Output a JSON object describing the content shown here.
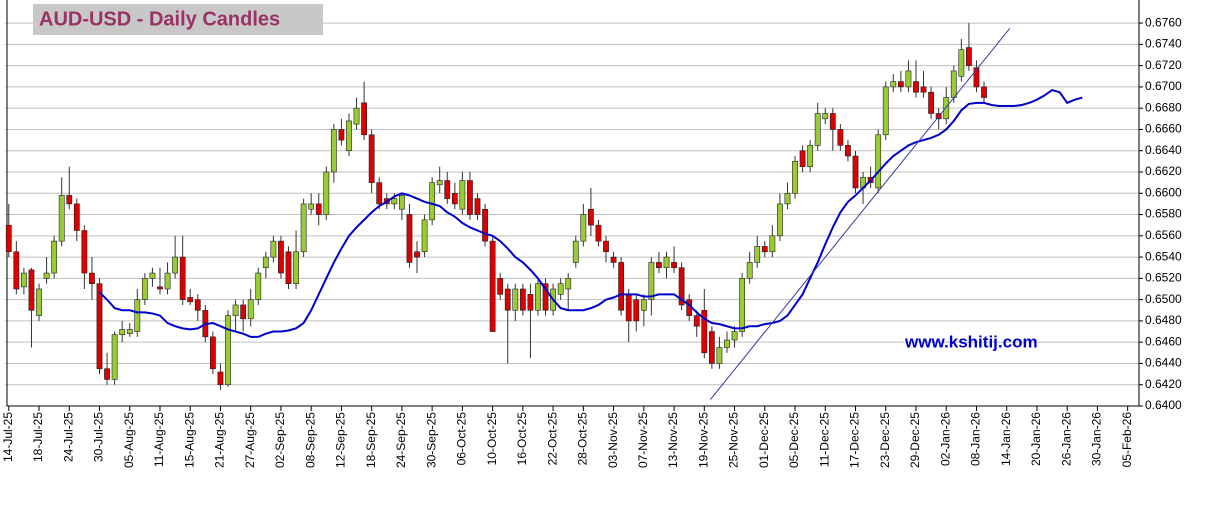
{
  "chart_data": {
    "type": "candlestick",
    "title": "AUD-USD - Daily Candles",
    "watermark": "www.kshitij.com",
    "categories": [
      "14-Jul-25",
      null,
      null,
      null,
      "18-Jul-25",
      null,
      null,
      null,
      "24-Jul-25",
      null,
      null,
      null,
      "30-Jul-25",
      null,
      null,
      null,
      "05-Aug-25",
      null,
      null,
      null,
      "11-Aug-25",
      null,
      null,
      null,
      "15-Aug-25",
      null,
      null,
      null,
      "21-Aug-25",
      null,
      null,
      null,
      "27-Aug-25",
      null,
      null,
      null,
      "02-Sep-25",
      null,
      null,
      null,
      "08-Sep-25",
      null,
      null,
      null,
      "12-Sep-25",
      null,
      null,
      null,
      "18-Sep-25",
      null,
      null,
      null,
      "24-Sep-25",
      null,
      null,
      null,
      "30-Sep-25",
      null,
      null,
      null,
      "06-Oct-25",
      null,
      null,
      null,
      "10-Oct-25",
      null,
      null,
      null,
      "16-Oct-25",
      null,
      null,
      null,
      "22-Oct-25",
      null,
      null,
      null,
      "28-Oct-25",
      null,
      null,
      null,
      "03-Nov-25",
      null,
      null,
      null,
      "07-Nov-25",
      null,
      null,
      null,
      "13-Nov-25",
      null,
      null,
      null,
      "19-Nov-25",
      null,
      null,
      null,
      "25-Nov-25",
      null,
      null,
      null,
      "01-Dec-25",
      null,
      null,
      null,
      "05-Dec-25",
      null,
      null,
      null,
      "11-Dec-25",
      null,
      null,
      null,
      "17-Dec-25",
      null,
      null,
      null,
      "23-Dec-25",
      null,
      null,
      null,
      "29-Dec-25",
      null,
      null,
      null,
      "02-Jan-26",
      null,
      null,
      null,
      "08-Jan-26",
      null,
      null,
      null,
      "14-Jan-26",
      null,
      null,
      null,
      "20-Jan-26",
      null,
      null,
      null,
      "26-Jan-26",
      null,
      null,
      null,
      "30-Jan-26",
      null,
      null,
      null,
      "05-Feb-26",
      null
    ],
    "candles": {
      "up_color": "#99cc33",
      "down_color": "#dd0000",
      "open": [
        0.657,
        0.6545,
        0.6512,
        0.6528,
        0.6485,
        0.652,
        0.6525,
        0.6555,
        0.6598,
        0.659,
        0.6565,
        0.6525,
        0.6515,
        0.6435,
        0.6425,
        0.6467,
        0.6468,
        0.647,
        0.65,
        0.652,
        0.6512,
        0.651,
        0.6525,
        0.654,
        0.6502,
        0.65,
        0.649,
        0.6465,
        0.6432,
        0.642,
        0.6485,
        0.6495,
        0.6482,
        0.65,
        0.653,
        0.654,
        0.6555,
        0.6545,
        0.6515,
        0.6545,
        0.6585,
        0.659,
        0.658,
        0.662,
        0.666,
        0.664,
        0.6665,
        0.6685,
        0.6655,
        0.661,
        0.6595,
        0.659,
        0.6585,
        0.658,
        0.6545,
        0.6545,
        0.6575,
        0.6608,
        0.6612,
        0.66,
        0.6585,
        0.6612,
        0.6595,
        0.6585,
        0.6555,
        0.652,
        0.651,
        0.649,
        0.651,
        0.6505,
        0.649,
        0.6515,
        0.649,
        0.6505,
        0.651,
        0.6535,
        0.6555,
        0.6585,
        0.657,
        0.6555,
        0.654,
        0.6535,
        0.6505,
        0.65,
        0.649,
        0.65,
        0.6535,
        0.653,
        0.6535,
        0.653,
        0.65,
        0.6485,
        0.649,
        0.647,
        0.644,
        0.6455,
        0.6462,
        0.647,
        0.652,
        0.6535,
        0.655,
        0.6545,
        0.656,
        0.659,
        0.66,
        0.664,
        0.6625,
        0.6645,
        0.667,
        0.6675,
        0.666,
        0.6645,
        0.6635,
        0.6605,
        0.6615,
        0.6605,
        0.6655,
        0.67,
        0.6705,
        0.67,
        0.6705,
        0.67,
        0.6695,
        0.6675,
        0.667,
        0.669,
        0.671,
        0.6737,
        0.6718,
        0.67,
        null,
        null,
        null,
        null,
        null,
        null,
        null,
        null,
        null,
        null,
        null,
        null,
        null,
        null,
        null,
        null,
        null,
        null,
        null,
        null
      ],
      "high": [
        0.659,
        0.6555,
        0.653,
        0.653,
        0.6515,
        0.654,
        0.656,
        0.6615,
        0.6625,
        0.6595,
        0.657,
        0.654,
        0.652,
        0.645,
        0.647,
        0.648,
        0.6478,
        0.651,
        0.6525,
        0.653,
        0.653,
        0.6535,
        0.656,
        0.656,
        0.651,
        0.6505,
        0.6495,
        0.647,
        0.644,
        0.649,
        0.65,
        0.65,
        0.651,
        0.653,
        0.6545,
        0.656,
        0.656,
        0.655,
        0.6565,
        0.6595,
        0.66,
        0.66,
        0.6625,
        0.6665,
        0.667,
        0.6675,
        0.669,
        0.6705,
        0.666,
        0.6615,
        0.66,
        0.66,
        0.66,
        0.659,
        0.6555,
        0.658,
        0.6615,
        0.6625,
        0.662,
        0.661,
        0.662,
        0.662,
        0.66,
        0.659,
        0.656,
        0.6525,
        0.6515,
        0.6515,
        0.6515,
        0.6515,
        0.652,
        0.652,
        0.6515,
        0.652,
        0.6525,
        0.656,
        0.659,
        0.6605,
        0.6575,
        0.656,
        0.6545,
        0.654,
        0.651,
        0.6505,
        0.6505,
        0.654,
        0.6545,
        0.6545,
        0.655,
        0.6535,
        0.6505,
        0.649,
        0.651,
        0.6475,
        0.6465,
        0.647,
        0.6475,
        0.6525,
        0.6545,
        0.656,
        0.6555,
        0.657,
        0.66,
        0.661,
        0.6635,
        0.6645,
        0.665,
        0.6685,
        0.668,
        0.668,
        0.6665,
        0.665,
        0.664,
        0.662,
        0.6625,
        0.666,
        0.6705,
        0.6712,
        0.6715,
        0.6725,
        0.6725,
        0.6715,
        0.67,
        0.668,
        0.67,
        0.672,
        0.6745,
        0.676,
        0.6725,
        0.6705,
        null,
        null,
        null,
        null,
        null,
        null,
        null,
        null,
        null,
        null,
        null,
        null,
        null,
        null,
        null,
        null,
        null,
        null,
        null,
        null
      ],
      "low": [
        0.654,
        0.6505,
        0.6505,
        0.6455,
        0.648,
        0.6515,
        0.652,
        0.655,
        0.6585,
        0.6555,
        0.651,
        0.65,
        0.643,
        0.642,
        0.642,
        0.646,
        0.6465,
        0.6465,
        0.6495,
        0.6512,
        0.6505,
        0.6505,
        0.652,
        0.6495,
        0.6495,
        0.648,
        0.646,
        0.643,
        0.6415,
        0.6418,
        0.647,
        0.647,
        0.6475,
        0.6495,
        0.652,
        0.6535,
        0.652,
        0.651,
        0.651,
        0.654,
        0.658,
        0.657,
        0.6575,
        0.661,
        0.6645,
        0.6635,
        0.666,
        0.665,
        0.66,
        0.6585,
        0.6585,
        0.6585,
        0.6575,
        0.653,
        0.6525,
        0.654,
        0.657,
        0.66,
        0.659,
        0.6585,
        0.658,
        0.6575,
        0.6575,
        0.655,
        0.647,
        0.65,
        0.644,
        0.648,
        0.6485,
        0.6445,
        0.6485,
        0.6485,
        0.6485,
        0.65,
        0.649,
        0.653,
        0.655,
        0.656,
        0.655,
        0.6535,
        0.653,
        0.6485,
        0.646,
        0.647,
        0.6475,
        0.6485,
        0.6525,
        0.652,
        0.6525,
        0.649,
        0.648,
        0.6465,
        0.6445,
        0.6435,
        0.6435,
        0.645,
        0.6455,
        0.6465,
        0.6515,
        0.653,
        0.654,
        0.654,
        0.6555,
        0.6585,
        0.6595,
        0.662,
        0.662,
        0.664,
        0.6665,
        0.664,
        0.664,
        0.663,
        0.66,
        0.659,
        0.6605,
        0.66,
        0.665,
        0.6695,
        0.6695,
        0.6695,
        0.669,
        0.669,
        0.667,
        0.666,
        0.6665,
        0.6685,
        0.6705,
        0.6715,
        0.6695,
        0.6685,
        null,
        null,
        null,
        null,
        null,
        null,
        null,
        null,
        null,
        null,
        null,
        null,
        null,
        null,
        null,
        null,
        null,
        null,
        null,
        null
      ],
      "close": [
        0.6545,
        0.651,
        0.6525,
        0.649,
        0.651,
        0.6525,
        0.6555,
        0.6598,
        0.659,
        0.6565,
        0.6525,
        0.6515,
        0.6435,
        0.6425,
        0.6467,
        0.6472,
        0.6472,
        0.65,
        0.652,
        0.6525,
        0.651,
        0.6525,
        0.654,
        0.65,
        0.6498,
        0.649,
        0.6465,
        0.6435,
        0.642,
        0.6485,
        0.6495,
        0.6482,
        0.65,
        0.6525,
        0.654,
        0.6555,
        0.6525,
        0.6515,
        0.6545,
        0.659,
        0.659,
        0.658,
        0.662,
        0.666,
        0.665,
        0.6668,
        0.668,
        0.6655,
        0.661,
        0.659,
        0.659,
        0.6595,
        0.6598,
        0.6535,
        0.654,
        0.6575,
        0.661,
        0.6612,
        0.6595,
        0.659,
        0.6612,
        0.658,
        0.658,
        0.6555,
        0.647,
        0.6505,
        0.649,
        0.651,
        0.649,
        0.649,
        0.6515,
        0.649,
        0.651,
        0.6515,
        0.652,
        0.6555,
        0.658,
        0.657,
        0.6555,
        0.6545,
        0.6535,
        0.649,
        0.648,
        0.648,
        0.65,
        0.6535,
        0.653,
        0.654,
        0.653,
        0.6495,
        0.6485,
        0.6475,
        0.645,
        0.644,
        0.6455,
        0.6462,
        0.647,
        0.652,
        0.6535,
        0.655,
        0.6545,
        0.656,
        0.659,
        0.66,
        0.663,
        0.6625,
        0.6645,
        0.6675,
        0.6675,
        0.666,
        0.6645,
        0.6635,
        0.6605,
        0.6615,
        0.661,
        0.6655,
        0.67,
        0.6705,
        0.67,
        0.6715,
        0.6695,
        0.6695,
        0.6675,
        0.667,
        0.669,
        0.6715,
        0.6735,
        0.672,
        0.67,
        0.669,
        null,
        null,
        null,
        null,
        null,
        null,
        null,
        null,
        null,
        null,
        null,
        null,
        null,
        null,
        null,
        null,
        null,
        null,
        null,
        null
      ]
    },
    "moving_average": {
      "color": "#0000cc",
      "values": [
        null,
        null,
        null,
        null,
        null,
        null,
        null,
        null,
        null,
        null,
        null,
        null,
        0.6507,
        0.65,
        0.6492,
        0.649,
        0.649,
        0.6488,
        0.6488,
        0.6487,
        0.6485,
        0.6478,
        0.6475,
        0.6473,
        0.6472,
        0.6473,
        0.6477,
        0.6478,
        0.6475,
        0.6472,
        0.647,
        0.6468,
        0.6465,
        0.6465,
        0.6468,
        0.647,
        0.647,
        0.6471,
        0.6473,
        0.6478,
        0.649,
        0.6505,
        0.652,
        0.6535,
        0.6548,
        0.656,
        0.6568,
        0.6575,
        0.6582,
        0.6588,
        0.6592,
        0.6597,
        0.66,
        0.6598,
        0.6595,
        0.6592,
        0.659,
        0.6588,
        0.6582,
        0.6578,
        0.6572,
        0.6568,
        0.6565,
        0.6562,
        0.656,
        0.6555,
        0.6548,
        0.654,
        0.6535,
        0.6528,
        0.652,
        0.651,
        0.65,
        0.6492,
        0.649,
        0.649,
        0.649,
        0.6492,
        0.6495,
        0.65,
        0.6502,
        0.6505,
        0.6505,
        0.6505,
        0.6503,
        0.6503,
        0.6505,
        0.6505,
        0.6505,
        0.65,
        0.6495,
        0.6488,
        0.6482,
        0.6478,
        0.6477,
        0.6475,
        0.6473,
        0.6473,
        0.6475,
        0.6475,
        0.6477,
        0.6478,
        0.648,
        0.6485,
        0.6495,
        0.6505,
        0.652,
        0.6535,
        0.6552,
        0.6568,
        0.6582,
        0.6592,
        0.6598,
        0.6605,
        0.6612,
        0.662,
        0.6628,
        0.6635,
        0.664,
        0.6645,
        0.6648,
        0.665,
        0.6652,
        0.6655,
        0.666,
        0.6668,
        0.6678,
        0.6684,
        0.6685,
        0.6685,
        0.6683,
        0.6682,
        0.6682,
        0.6682,
        0.6683,
        0.6685,
        0.6688,
        0.6692,
        0.6697,
        0.6695,
        0.6685,
        0.6688,
        0.669,
        null,
        null,
        null,
        null,
        null,
        null,
        null
      ]
    },
    "trendline": {
      "color": "#3a3aa0",
      "points": [
        [
          92.8,
          0.6406
        ],
        [
          132.4,
          0.6755
        ]
      ]
    },
    "ylim": [
      0.64,
      0.6777
    ],
    "yticks": [
      {
        "value": 0.64,
        "label": "0.6400"
      },
      {
        "value": 0.642,
        "label": "0.6420"
      },
      {
        "value": 0.644,
        "label": "0.6440"
      },
      {
        "value": 0.646,
        "label": "0.6460"
      },
      {
        "value": 0.648,
        "label": "0.6480"
      },
      {
        "value": 0.65,
        "label": "0.6500"
      },
      {
        "value": 0.652,
        "label": "0.6520"
      },
      {
        "value": 0.654,
        "label": "0.6540"
      },
      {
        "value": 0.656,
        "label": "0.6560"
      },
      {
        "value": 0.658,
        "label": "0.6580"
      },
      {
        "value": 0.66,
        "label": "0.6600"
      },
      {
        "value": 0.662,
        "label": "0.6620"
      },
      {
        "value": 0.664,
        "label": "0.6640"
      },
      {
        "value": 0.666,
        "label": "0.6660"
      },
      {
        "value": 0.668,
        "label": "0.6680"
      },
      {
        "value": 0.67,
        "label": "0.6700"
      },
      {
        "value": 0.672,
        "label": "0.6720"
      },
      {
        "value": 0.674,
        "label": "0.6740"
      },
      {
        "value": 0.676,
        "label": "0.6760"
      }
    ],
    "grid": true
  }
}
